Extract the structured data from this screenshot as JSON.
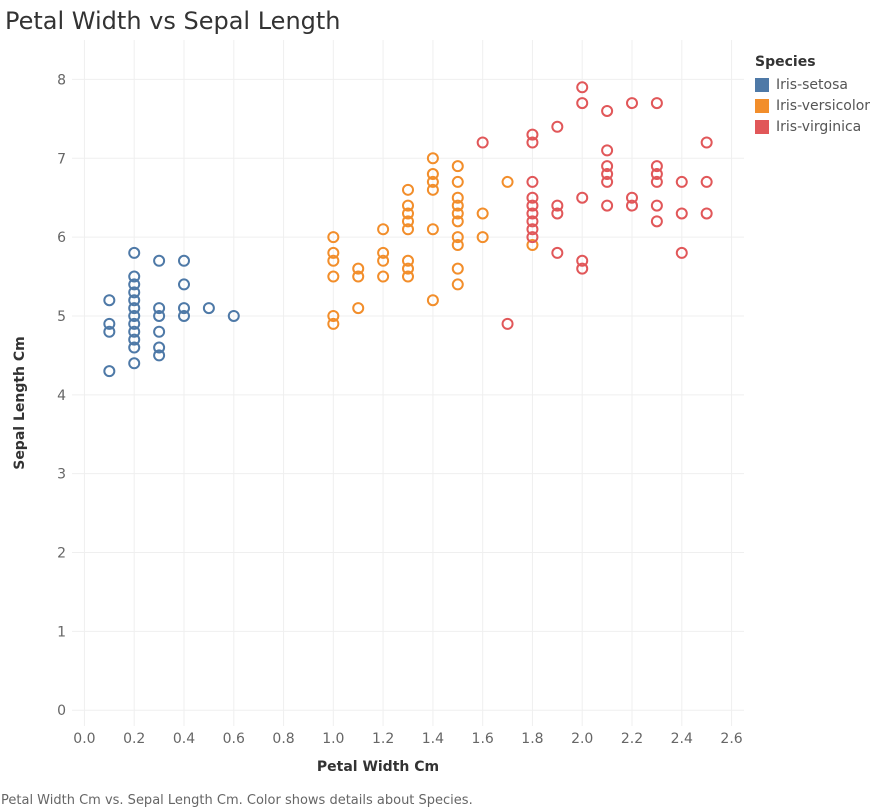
{
  "title": "Petal Width vs Sepal Length",
  "caption": "Petal Width Cm vs. Sepal Length Cm.  Color shows details about Species.",
  "legend": {
    "title": "Species",
    "items": [
      {
        "label": "Iris-setosa",
        "color": "#4e79a7"
      },
      {
        "label": "Iris-versicolor",
        "color": "#f28e2b"
      },
      {
        "label": "Iris-virginica",
        "color": "#e15759"
      }
    ]
  },
  "chart_data": {
    "type": "scatter",
    "title": "Petal Width vs Sepal Length",
    "xlabel": "Petal Width Cm",
    "ylabel": "Sepal Length Cm",
    "xlim": [
      -0.05,
      2.65
    ],
    "ylim": [
      -0.2,
      8.5
    ],
    "xticks": [
      "0.0",
      "0.2",
      "0.4",
      "0.6",
      "0.8",
      "1.0",
      "1.2",
      "1.4",
      "1.6",
      "1.8",
      "2.0",
      "2.2",
      "2.4",
      "2.6"
    ],
    "yticks": [
      "0",
      "1",
      "2",
      "3",
      "4",
      "5",
      "6",
      "7",
      "8"
    ],
    "grid": true,
    "legend_position": "right",
    "series": [
      {
        "name": "Iris-setosa",
        "color": "#4e79a7",
        "points": [
          [
            0.1,
            5.2
          ],
          [
            0.1,
            4.9
          ],
          [
            0.1,
            4.8
          ],
          [
            0.1,
            4.3
          ],
          [
            0.2,
            5.8
          ],
          [
            0.2,
            5.5
          ],
          [
            0.2,
            5.4
          ],
          [
            0.2,
            5.3
          ],
          [
            0.2,
            5.2
          ],
          [
            0.2,
            5.1
          ],
          [
            0.2,
            5.0
          ],
          [
            0.2,
            4.9
          ],
          [
            0.2,
            4.8
          ],
          [
            0.2,
            4.7
          ],
          [
            0.2,
            4.6
          ],
          [
            0.2,
            4.4
          ],
          [
            0.3,
            5.7
          ],
          [
            0.3,
            5.1
          ],
          [
            0.3,
            5.0
          ],
          [
            0.3,
            4.8
          ],
          [
            0.3,
            4.6
          ],
          [
            0.3,
            4.5
          ],
          [
            0.4,
            5.7
          ],
          [
            0.4,
            5.4
          ],
          [
            0.4,
            5.1
          ],
          [
            0.4,
            5.0
          ],
          [
            0.5,
            5.1
          ],
          [
            0.6,
            5.0
          ]
        ]
      },
      {
        "name": "Iris-versicolor",
        "color": "#f28e2b",
        "points": [
          [
            1.0,
            6.0
          ],
          [
            1.0,
            5.8
          ],
          [
            1.0,
            5.7
          ],
          [
            1.0,
            5.5
          ],
          [
            1.0,
            5.0
          ],
          [
            1.0,
            4.9
          ],
          [
            1.1,
            5.6
          ],
          [
            1.1,
            5.5
          ],
          [
            1.1,
            5.1
          ],
          [
            1.2,
            6.1
          ],
          [
            1.2,
            5.8
          ],
          [
            1.2,
            5.7
          ],
          [
            1.2,
            5.5
          ],
          [
            1.3,
            6.6
          ],
          [
            1.3,
            6.4
          ],
          [
            1.3,
            6.3
          ],
          [
            1.3,
            6.2
          ],
          [
            1.3,
            6.1
          ],
          [
            1.3,
            5.7
          ],
          [
            1.3,
            5.6
          ],
          [
            1.3,
            5.5
          ],
          [
            1.4,
            7.0
          ],
          [
            1.4,
            6.8
          ],
          [
            1.4,
            6.7
          ],
          [
            1.4,
            6.6
          ],
          [
            1.4,
            6.1
          ],
          [
            1.4,
            5.2
          ],
          [
            1.5,
            6.9
          ],
          [
            1.5,
            6.7
          ],
          [
            1.5,
            6.5
          ],
          [
            1.5,
            6.4
          ],
          [
            1.5,
            6.3
          ],
          [
            1.5,
            6.2
          ],
          [
            1.5,
            6.0
          ],
          [
            1.5,
            5.9
          ],
          [
            1.5,
            5.6
          ],
          [
            1.5,
            5.4
          ],
          [
            1.6,
            6.3
          ],
          [
            1.6,
            6.0
          ],
          [
            1.7,
            6.7
          ],
          [
            1.8,
            5.9
          ]
        ]
      },
      {
        "name": "Iris-virginica",
        "color": "#e15759",
        "points": [
          [
            1.6,
            7.2
          ],
          [
            1.7,
            4.9
          ],
          [
            1.8,
            7.3
          ],
          [
            1.8,
            7.2
          ],
          [
            1.8,
            6.7
          ],
          [
            1.8,
            6.5
          ],
          [
            1.8,
            6.4
          ],
          [
            1.8,
            6.3
          ],
          [
            1.8,
            6.2
          ],
          [
            1.8,
            6.1
          ],
          [
            1.8,
            6.0
          ],
          [
            1.9,
            7.4
          ],
          [
            1.9,
            6.4
          ],
          [
            1.9,
            6.3
          ],
          [
            1.9,
            5.8
          ],
          [
            2.0,
            7.9
          ],
          [
            2.0,
            7.7
          ],
          [
            2.0,
            6.5
          ],
          [
            2.0,
            5.7
          ],
          [
            2.0,
            5.6
          ],
          [
            2.1,
            7.6
          ],
          [
            2.1,
            7.1
          ],
          [
            2.1,
            6.9
          ],
          [
            2.1,
            6.8
          ],
          [
            2.1,
            6.7
          ],
          [
            2.1,
            6.4
          ],
          [
            2.2,
            7.7
          ],
          [
            2.2,
            6.5
          ],
          [
            2.2,
            6.4
          ],
          [
            2.3,
            7.7
          ],
          [
            2.3,
            6.9
          ],
          [
            2.3,
            6.8
          ],
          [
            2.3,
            6.7
          ],
          [
            2.3,
            6.4
          ],
          [
            2.3,
            6.2
          ],
          [
            2.4,
            6.7
          ],
          [
            2.4,
            6.3
          ],
          [
            2.4,
            5.8
          ],
          [
            2.5,
            7.2
          ],
          [
            2.5,
            6.7
          ],
          [
            2.5,
            6.3
          ]
        ]
      }
    ]
  }
}
